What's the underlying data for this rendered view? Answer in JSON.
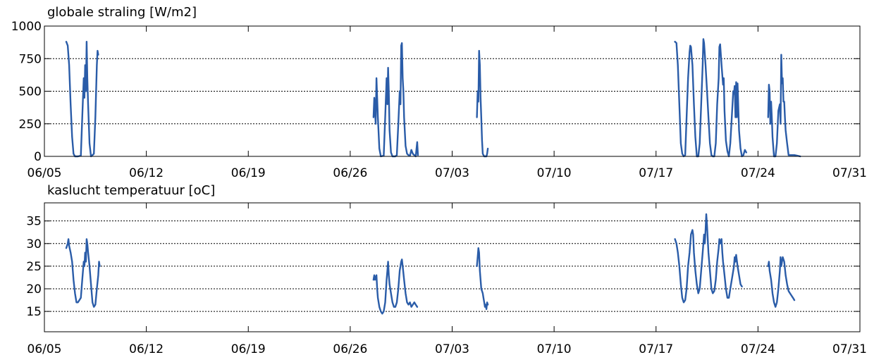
{
  "chart_data": [
    {
      "type": "line",
      "title": "globale straling [W/m2]",
      "x_ticks": [
        "06/05",
        "06/12",
        "06/19",
        "06/26",
        "07/03",
        "07/10",
        "07/17",
        "07/24",
        "07/31"
      ],
      "y_ticks": [
        "0",
        "250",
        "500",
        "750",
        "1000"
      ],
      "y_tick_values": [
        0,
        250,
        500,
        750,
        1000
      ],
      "ylim": [
        0,
        1000
      ],
      "xlim_days": [
        0,
        56
      ],
      "grid": "y",
      "color": "#2a5ca8",
      "segments": [
        [
          [
            1.5,
            880
          ],
          [
            1.6,
            850
          ],
          [
            1.7,
            700
          ],
          [
            1.8,
            400
          ],
          [
            1.9,
            150
          ],
          [
            2.0,
            20
          ],
          [
            2.1,
            0
          ],
          [
            2.3,
            0
          ],
          [
            2.5,
            5
          ],
          [
            2.6,
            300
          ],
          [
            2.7,
            600
          ],
          [
            2.75,
            450
          ],
          [
            2.8,
            700
          ],
          [
            2.85,
            500
          ],
          [
            2.9,
            880
          ],
          [
            2.95,
            600
          ],
          [
            3.0,
            400
          ],
          [
            3.1,
            100
          ],
          [
            3.2,
            0
          ],
          [
            3.3,
            10
          ],
          [
            3.4,
            20
          ],
          [
            3.5,
            300
          ],
          [
            3.6,
            700
          ],
          [
            3.65,
            810
          ],
          [
            3.7,
            780
          ]
        ],
        [
          [
            22.6,
            300
          ],
          [
            22.65,
            450
          ],
          [
            22.7,
            350
          ],
          [
            22.75,
            250
          ],
          [
            22.8,
            600
          ],
          [
            22.85,
            450
          ],
          [
            22.9,
            300
          ],
          [
            23.0,
            60
          ],
          [
            23.1,
            0
          ],
          [
            23.3,
            5
          ],
          [
            23.4,
            300
          ],
          [
            23.5,
            600
          ],
          [
            23.55,
            400
          ],
          [
            23.6,
            680
          ],
          [
            23.65,
            500
          ],
          [
            23.7,
            200
          ],
          [
            23.8,
            30
          ],
          [
            23.9,
            0
          ],
          [
            24.1,
            0
          ],
          [
            24.2,
            10
          ],
          [
            24.3,
            250
          ],
          [
            24.4,
            500
          ],
          [
            24.45,
            400
          ],
          [
            24.5,
            850
          ],
          [
            24.55,
            870
          ],
          [
            24.6,
            600
          ],
          [
            24.65,
            500
          ],
          [
            24.7,
            300
          ],
          [
            24.8,
            80
          ],
          [
            24.9,
            20
          ],
          [
            25.0,
            10
          ],
          [
            25.1,
            5
          ],
          [
            25.2,
            50
          ],
          [
            25.3,
            20
          ],
          [
            25.5,
            0
          ],
          [
            25.6,
            110
          ],
          [
            25.65,
            10
          ]
        ],
        [
          [
            29.7,
            300
          ],
          [
            29.75,
            500
          ],
          [
            29.8,
            420
          ],
          [
            29.85,
            810
          ],
          [
            29.9,
            700
          ],
          [
            29.95,
            450
          ],
          [
            30.0,
            300
          ],
          [
            30.05,
            120
          ],
          [
            30.1,
            20
          ],
          [
            30.2,
            0
          ],
          [
            30.35,
            0
          ],
          [
            30.4,
            20
          ],
          [
            30.45,
            60
          ]
        ],
        [
          [
            43.3,
            880
          ],
          [
            43.4,
            870
          ],
          [
            43.5,
            700
          ],
          [
            43.6,
            400
          ],
          [
            43.7,
            100
          ],
          [
            43.8,
            20
          ],
          [
            43.9,
            0
          ],
          [
            44.0,
            10
          ],
          [
            44.1,
            300
          ],
          [
            44.2,
            600
          ],
          [
            44.3,
            800
          ],
          [
            44.35,
            850
          ],
          [
            44.4,
            840
          ],
          [
            44.5,
            700
          ],
          [
            44.6,
            400
          ],
          [
            44.7,
            150
          ],
          [
            44.8,
            0
          ],
          [
            44.9,
            0
          ],
          [
            45.0,
            100
          ],
          [
            45.1,
            400
          ],
          [
            45.2,
            700
          ],
          [
            45.25,
            900
          ],
          [
            45.3,
            870
          ],
          [
            45.4,
            700
          ],
          [
            45.5,
            500
          ],
          [
            45.55,
            400
          ],
          [
            45.6,
            300
          ],
          [
            45.7,
            100
          ],
          [
            45.8,
            10
          ],
          [
            45.9,
            0
          ],
          [
            46.0,
            0
          ],
          [
            46.1,
            100
          ],
          [
            46.2,
            400
          ],
          [
            46.3,
            600
          ],
          [
            46.35,
            840
          ],
          [
            46.4,
            860
          ],
          [
            46.5,
            700
          ],
          [
            46.6,
            550
          ],
          [
            46.65,
            600
          ],
          [
            46.7,
            350
          ],
          [
            46.8,
            120
          ],
          [
            46.9,
            40
          ],
          [
            47.0,
            0
          ],
          [
            47.1,
            100
          ],
          [
            47.2,
            300
          ],
          [
            47.3,
            500
          ],
          [
            47.35,
            480
          ],
          [
            47.4,
            540
          ],
          [
            47.45,
            300
          ],
          [
            47.5,
            570
          ],
          [
            47.55,
            300
          ],
          [
            47.6,
            560
          ],
          [
            47.7,
            200
          ],
          [
            47.8,
            60
          ],
          [
            47.9,
            0
          ],
          [
            48.0,
            10
          ],
          [
            48.1,
            50
          ],
          [
            48.2,
            30
          ]
        ],
        [
          [
            49.7,
            300
          ],
          [
            49.75,
            550
          ],
          [
            49.8,
            500
          ],
          [
            49.85,
            250
          ],
          [
            49.9,
            420
          ],
          [
            49.95,
            300
          ],
          [
            50.0,
            150
          ],
          [
            50.1,
            0
          ],
          [
            50.2,
            0
          ],
          [
            50.3,
            100
          ],
          [
            50.4,
            350
          ],
          [
            50.5,
            400
          ],
          [
            50.55,
            250
          ],
          [
            50.6,
            780
          ],
          [
            50.65,
            560
          ],
          [
            50.7,
            600
          ],
          [
            50.75,
            420
          ],
          [
            50.8,
            420
          ],
          [
            50.85,
            300
          ],
          [
            50.9,
            200
          ],
          [
            51.0,
            100
          ],
          [
            51.1,
            10
          ],
          [
            51.3,
            10
          ],
          [
            51.5,
            10
          ],
          [
            51.7,
            5
          ],
          [
            51.9,
            0
          ]
        ]
      ]
    },
    {
      "type": "line",
      "title": "kaslucht temperatuur [oC]",
      "x_ticks": [
        "06/05",
        "06/12",
        "06/19",
        "06/26",
        "07/03",
        "07/10",
        "07/17",
        "07/24",
        "07/31"
      ],
      "y_ticks": [
        "15",
        "20",
        "25",
        "30",
        "35"
      ],
      "y_tick_values": [
        15,
        20,
        25,
        30,
        35
      ],
      "ylim": [
        10.5,
        39
      ],
      "xlim_days": [
        0,
        56
      ],
      "grid": "y",
      "color": "#2a5ca8",
      "segments": [
        [
          [
            1.5,
            29
          ],
          [
            1.6,
            30
          ],
          [
            1.65,
            31
          ],
          [
            1.7,
            29.5
          ],
          [
            1.8,
            28
          ],
          [
            1.9,
            26
          ],
          [
            2.0,
            22
          ],
          [
            2.1,
            19
          ],
          [
            2.2,
            17
          ],
          [
            2.3,
            17
          ],
          [
            2.4,
            17.5
          ],
          [
            2.5,
            18
          ],
          [
            2.6,
            22
          ],
          [
            2.7,
            26
          ],
          [
            2.75,
            25
          ],
          [
            2.8,
            28
          ],
          [
            2.85,
            26
          ],
          [
            2.9,
            31
          ],
          [
            2.95,
            30
          ],
          [
            3.0,
            28
          ],
          [
            3.1,
            25
          ],
          [
            3.2,
            21
          ],
          [
            3.3,
            17
          ],
          [
            3.4,
            16
          ],
          [
            3.5,
            16.5
          ],
          [
            3.6,
            20
          ],
          [
            3.7,
            23
          ],
          [
            3.75,
            26
          ],
          [
            3.8,
            25
          ]
        ],
        [
          [
            22.6,
            22
          ],
          [
            22.65,
            23
          ],
          [
            22.7,
            22
          ],
          [
            22.8,
            23
          ],
          [
            22.85,
            20
          ],
          [
            22.9,
            18
          ],
          [
            23.0,
            16
          ],
          [
            23.1,
            15
          ],
          [
            23.2,
            14.5
          ],
          [
            23.3,
            15
          ],
          [
            23.4,
            17
          ],
          [
            23.5,
            22
          ],
          [
            23.55,
            24
          ],
          [
            23.6,
            26
          ],
          [
            23.65,
            23
          ],
          [
            23.7,
            21
          ],
          [
            23.8,
            19
          ],
          [
            23.9,
            17
          ],
          [
            24.0,
            16
          ],
          [
            24.1,
            16
          ],
          [
            24.2,
            17
          ],
          [
            24.3,
            20
          ],
          [
            24.4,
            24
          ],
          [
            24.5,
            26
          ],
          [
            24.55,
            26.5
          ],
          [
            24.6,
            25
          ],
          [
            24.7,
            22
          ],
          [
            24.8,
            19
          ],
          [
            24.9,
            17
          ],
          [
            25.0,
            16.5
          ],
          [
            25.1,
            17
          ],
          [
            25.2,
            16
          ],
          [
            25.3,
            16.5
          ],
          [
            25.4,
            17
          ],
          [
            25.5,
            16.5
          ],
          [
            25.6,
            16
          ]
        ],
        [
          [
            29.7,
            25
          ],
          [
            29.75,
            27
          ],
          [
            29.8,
            29
          ],
          [
            29.85,
            28
          ],
          [
            29.9,
            24
          ],
          [
            29.95,
            22
          ],
          [
            30.0,
            20
          ],
          [
            30.1,
            19
          ],
          [
            30.15,
            18
          ],
          [
            30.2,
            17
          ],
          [
            30.25,
            16
          ],
          [
            30.3,
            16.5
          ],
          [
            30.35,
            15.5
          ],
          [
            30.4,
            17
          ],
          [
            30.45,
            16.5
          ]
        ],
        [
          [
            43.3,
            31
          ],
          [
            43.4,
            30
          ],
          [
            43.5,
            28
          ],
          [
            43.6,
            25
          ],
          [
            43.7,
            21
          ],
          [
            43.8,
            18
          ],
          [
            43.9,
            17
          ],
          [
            44.0,
            17.5
          ],
          [
            44.1,
            20
          ],
          [
            44.2,
            25
          ],
          [
            44.3,
            28
          ],
          [
            44.35,
            30
          ],
          [
            44.4,
            32
          ],
          [
            44.5,
            33
          ],
          [
            44.55,
            32
          ],
          [
            44.6,
            28
          ],
          [
            44.7,
            24
          ],
          [
            44.8,
            21
          ],
          [
            44.9,
            19
          ],
          [
            45.0,
            20
          ],
          [
            45.1,
            24
          ],
          [
            45.2,
            28
          ],
          [
            45.3,
            32
          ],
          [
            45.35,
            30
          ],
          [
            45.4,
            33
          ],
          [
            45.45,
            36.5
          ],
          [
            45.5,
            34
          ],
          [
            45.6,
            28
          ],
          [
            45.7,
            24
          ],
          [
            45.8,
            20
          ],
          [
            45.9,
            19
          ],
          [
            46.0,
            19.5
          ],
          [
            46.1,
            22
          ],
          [
            46.2,
            26
          ],
          [
            46.3,
            29
          ],
          [
            46.35,
            31
          ],
          [
            46.4,
            30
          ],
          [
            46.5,
            31
          ],
          [
            46.55,
            28
          ],
          [
            46.6,
            26
          ],
          [
            46.7,
            23
          ],
          [
            46.8,
            20
          ],
          [
            46.9,
            18
          ],
          [
            47.0,
            18
          ],
          [
            47.1,
            20
          ],
          [
            47.2,
            22
          ],
          [
            47.3,
            24
          ],
          [
            47.35,
            25
          ],
          [
            47.4,
            27
          ],
          [
            47.45,
            26
          ],
          [
            47.5,
            27.5
          ],
          [
            47.6,
            25
          ],
          [
            47.7,
            23
          ],
          [
            47.8,
            21
          ],
          [
            47.9,
            20.5
          ]
        ],
        [
          [
            49.7,
            25
          ],
          [
            49.75,
            26
          ],
          [
            49.8,
            24
          ],
          [
            49.9,
            22
          ],
          [
            50.0,
            19
          ],
          [
            50.1,
            17
          ],
          [
            50.2,
            16
          ],
          [
            50.3,
            17
          ],
          [
            50.4,
            20
          ],
          [
            50.5,
            24
          ],
          [
            50.55,
            27
          ],
          [
            50.6,
            25
          ],
          [
            50.7,
            27
          ],
          [
            50.8,
            26
          ],
          [
            50.9,
            23
          ],
          [
            51.0,
            21
          ],
          [
            51.1,
            19.5
          ],
          [
            51.2,
            19
          ],
          [
            51.3,
            18.5
          ],
          [
            51.4,
            18
          ],
          [
            51.5,
            17.5
          ]
        ]
      ]
    }
  ]
}
